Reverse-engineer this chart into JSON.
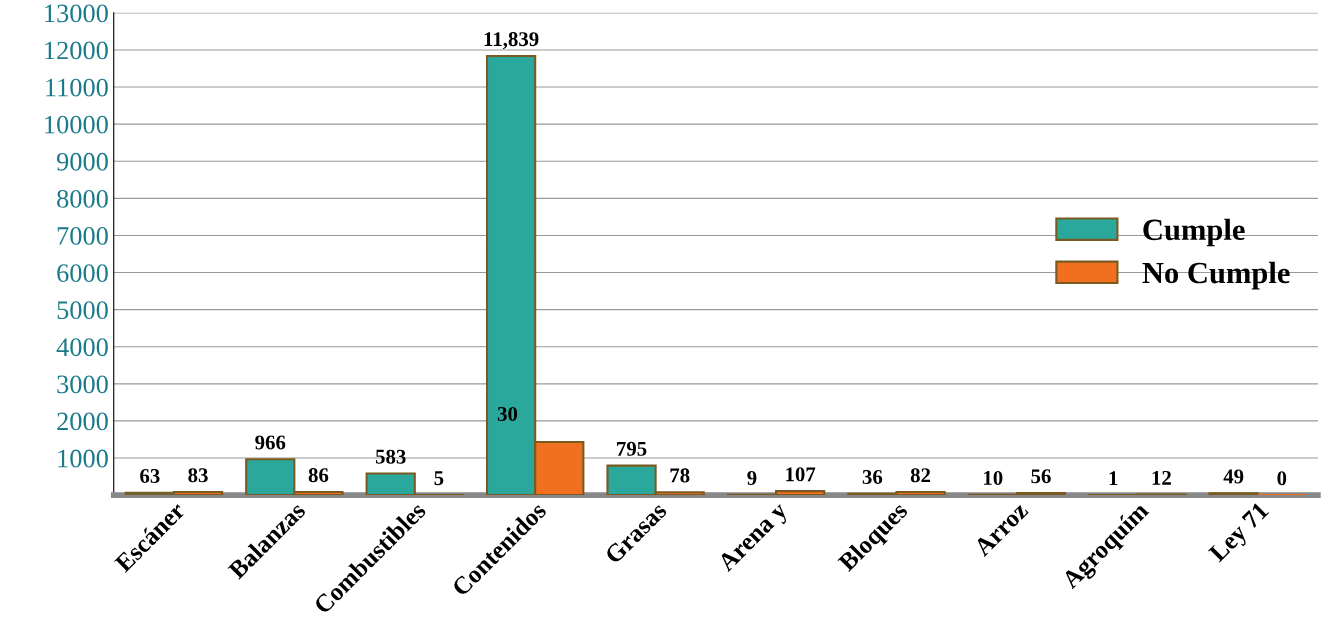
{
  "chart_data": {
    "type": "bar",
    "categories": [
      "Escáner",
      "Balanzas",
      "Combustibles",
      "Contenidos",
      "Grasas",
      "Arena y",
      "Bloques",
      "Arroz",
      "Agroquím",
      "Ley 71"
    ],
    "series": [
      {
        "name": "Cumple",
        "color": "#2aa89c",
        "values": [
          63,
          966,
          583,
          11839,
          795,
          9,
          36,
          10,
          1,
          49
        ],
        "value_labels": [
          "63",
          "966",
          "583",
          "11,839",
          "795",
          "9",
          "36",
          "10",
          "1",
          "49"
        ]
      },
      {
        "name": "No Cumple",
        "color": "#f07020",
        "values": [
          83,
          86,
          5,
          1430,
          78,
          107,
          82,
          56,
          12,
          0
        ],
        "value_labels": [
          "83",
          "86",
          "5",
          null,
          "78",
          "107",
          "82",
          "56",
          "12",
          "0"
        ]
      }
    ],
    "annotations": [
      "30"
    ],
    "ylim": [
      0,
      13000
    ],
    "yticks": [
      1000,
      2000,
      3000,
      4000,
      5000,
      6000,
      7000,
      8000,
      9000,
      10000,
      11000,
      12000,
      13000
    ],
    "grid": "y",
    "legend": "center right"
  }
}
